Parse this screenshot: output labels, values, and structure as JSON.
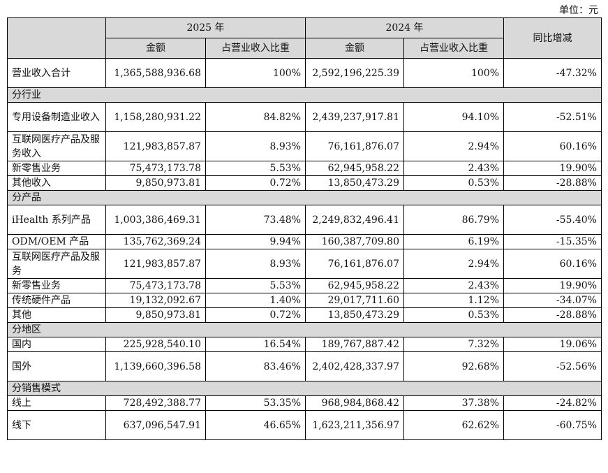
{
  "unit_label": "单位：元",
  "header": {
    "year_2025": "2025 年",
    "year_2024": "2024 年",
    "amount": "金额",
    "ratio": "占营业收入比重",
    "yoy": "同比增减"
  },
  "total": {
    "label": "营业收入合计",
    "amount_2025": "1,365,588,936.68",
    "ratio_2025": "100%",
    "amount_2024": "2,592,196,225.39",
    "ratio_2024": "100%",
    "yoy": "-47.32%"
  },
  "sections": [
    {
      "title": "分行业",
      "rows": [
        {
          "label": "专用设备制造业收入",
          "amount_2025": "1,158,280,931.22",
          "ratio_2025": "84.82%",
          "amount_2024": "2,439,237,917.81",
          "ratio_2024": "94.10%",
          "yoy": "-52.51%"
        },
        {
          "label": "互联网医疗产品及服务收入",
          "amount_2025": "121,983,857.87",
          "ratio_2025": "8.93%",
          "amount_2024": "76,161,876.07",
          "ratio_2024": "2.94%",
          "yoy": "60.16%"
        },
        {
          "label": "新零售业务",
          "amount_2025": "75,473,173.78",
          "ratio_2025": "5.53%",
          "amount_2024": "62,945,958.22",
          "ratio_2024": "2.43%",
          "yoy": "19.90%"
        },
        {
          "label": "其他收入",
          "amount_2025": "9,850,973.81",
          "ratio_2025": "0.72%",
          "amount_2024": "13,850,473.29",
          "ratio_2024": "0.53%",
          "yoy": "-28.88%"
        }
      ]
    },
    {
      "title": "分产品",
      "rows": [
        {
          "label": "iHealth 系列产品",
          "amount_2025": "1,003,386,469.31",
          "ratio_2025": "73.48%",
          "amount_2024": "2,249,832,496.41",
          "ratio_2024": "86.79%",
          "yoy": "-55.40%"
        },
        {
          "label": "ODM/OEM 产品",
          "amount_2025": "135,762,369.24",
          "ratio_2025": "9.94%",
          "amount_2024": "160,387,709.80",
          "ratio_2024": "6.19%",
          "yoy": "-15.35%"
        },
        {
          "label": "互联网医疗产品及服务",
          "amount_2025": "121,983,857.87",
          "ratio_2025": "8.93%",
          "amount_2024": "76,161,876.07",
          "ratio_2024": "2.94%",
          "yoy": "60.16%"
        },
        {
          "label": "新零售业务",
          "amount_2025": "75,473,173.78",
          "ratio_2025": "5.53%",
          "amount_2024": "62,945,958.22",
          "ratio_2024": "2.43%",
          "yoy": "19.90%"
        },
        {
          "label": "传统硬件产品",
          "amount_2025": "19,132,092.67",
          "ratio_2025": "1.40%",
          "amount_2024": "29,017,711.60",
          "ratio_2024": "1.12%",
          "yoy": "-34.07%"
        },
        {
          "label": "其他",
          "amount_2025": "9,850,973.81",
          "ratio_2025": "0.72%",
          "amount_2024": "13,850,473.29",
          "ratio_2024": "0.53%",
          "yoy": "-28.88%"
        }
      ]
    },
    {
      "title": "分地区",
      "rows": [
        {
          "label": "国内",
          "amount_2025": "225,928,540.10",
          "ratio_2025": "16.54%",
          "amount_2024": "189,767,887.42",
          "ratio_2024": "7.32%",
          "yoy": "19.06%"
        },
        {
          "label": "国外",
          "amount_2025": "1,139,660,396.58",
          "ratio_2025": "83.46%",
          "amount_2024": "2,402,428,337.97",
          "ratio_2024": "92.68%",
          "yoy": "-52.56%"
        }
      ]
    },
    {
      "title": "分销售模式",
      "rows": [
        {
          "label": "线上",
          "amount_2025": "728,492,388.77",
          "ratio_2025": "53.35%",
          "amount_2024": "968,984,868.42",
          "ratio_2024": "37.38%",
          "yoy": "-24.82%"
        },
        {
          "label": "线下",
          "amount_2025": "637,096,547.91",
          "ratio_2025": "46.65%",
          "amount_2024": "1,623,211,356.97",
          "ratio_2024": "62.62%",
          "yoy": "-60.75%"
        }
      ]
    }
  ]
}
